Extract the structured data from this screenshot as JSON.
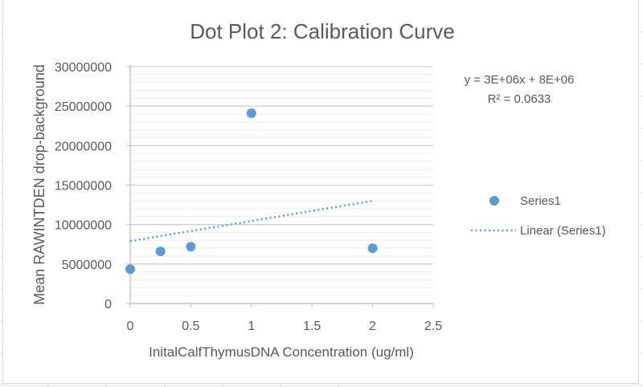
{
  "chart_data": {
    "type": "scatter",
    "title": "Dot Plot 2: Calibration Curve",
    "xlabel": "InitalCalfThymusDNA Concentration (ug/ml)",
    "ylabel": "Mean RAWINTDEN drop-background",
    "xlim": [
      0,
      2.5
    ],
    "ylim": [
      0,
      30000000
    ],
    "x_ticks": [
      "0",
      "0.5",
      "1",
      "1.5",
      "2",
      "2.5"
    ],
    "y_ticks": [
      "0",
      "5000000",
      "10000000",
      "15000000",
      "20000000",
      "25000000",
      "30000000"
    ],
    "grid": {
      "major": true,
      "minor": true
    },
    "series": [
      {
        "name": "Series1",
        "color": "#5b9bd5",
        "x": [
          0,
          0.25,
          0.5,
          1,
          2
        ],
        "y": [
          4350000,
          6600000,
          7200000,
          24100000,
          7000000
        ]
      }
    ],
    "trendline": {
      "name": "Linear (Series1)",
      "type": "linear",
      "style": "dotted",
      "color": "#5b9bd5",
      "x_range": [
        0,
        2
      ],
      "y_start": 7900000,
      "y_end": 13000000,
      "equation": "y = 3E+06x + 8E+06",
      "r_squared": "R² = 0.0633"
    },
    "legend": {
      "placement": "right",
      "entries": [
        "Series1",
        "Linear (Series1)"
      ]
    }
  }
}
